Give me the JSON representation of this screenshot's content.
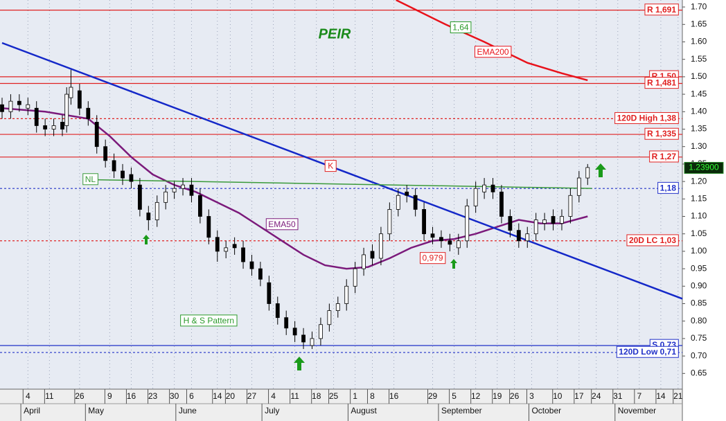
{
  "chart_data": {
    "type": "candlestick",
    "title": "PEIR",
    "xlim": [
      0,
      158
    ],
    "ylim": [
      0.605,
      1.72
    ],
    "yticks": [
      {
        "value": 0.65,
        "label": "0.65"
      },
      {
        "value": 0.7,
        "label": "0.70"
      },
      {
        "value": 0.75,
        "label": "0.75"
      },
      {
        "value": 0.8,
        "label": "0.80"
      },
      {
        "value": 0.85,
        "label": "0.85"
      },
      {
        "value": 0.9,
        "label": "0.90"
      },
      {
        "value": 0.95,
        "label": "0.95"
      },
      {
        "value": 1.0,
        "label": "1.00"
      },
      {
        "value": 1.05,
        "label": "1.05"
      },
      {
        "value": 1.1,
        "label": "1.10"
      },
      {
        "value": 1.15,
        "label": "1.15"
      },
      {
        "value": 1.2,
        "label": "1.20"
      },
      {
        "value": 1.25,
        "label": "1.25"
      },
      {
        "value": 1.3,
        "label": "1.30"
      },
      {
        "value": 1.35,
        "label": "1.35"
      },
      {
        "value": 1.4,
        "label": "1.40"
      },
      {
        "value": 1.45,
        "label": "1.45"
      },
      {
        "value": 1.5,
        "label": "1.50"
      },
      {
        "value": 1.55,
        "label": "1.55"
      },
      {
        "value": 1.6,
        "label": "1.60"
      },
      {
        "value": 1.65,
        "label": "1.65"
      },
      {
        "value": 1.7,
        "label": "1.70"
      }
    ],
    "xticks": [
      {
        "value": 6,
        "label": "4"
      },
      {
        "value": 11,
        "label": "11"
      },
      {
        "value": 18,
        "label": "26"
      },
      {
        "value": 25,
        "label": "9"
      },
      {
        "value": 30,
        "label": "16"
      },
      {
        "value": 35,
        "label": "23"
      },
      {
        "value": 40,
        "label": "30"
      },
      {
        "value": 44,
        "label": "6"
      },
      {
        "value": 50,
        "label": "14"
      },
      {
        "value": 53,
        "label": "20"
      },
      {
        "value": 58,
        "label": "27"
      },
      {
        "value": 63,
        "label": "4"
      },
      {
        "value": 68,
        "label": "11"
      },
      {
        "value": 73,
        "label": "18"
      },
      {
        "value": 77,
        "label": "25"
      },
      {
        "value": 82,
        "label": "1"
      },
      {
        "value": 86,
        "label": "8"
      },
      {
        "value": 91,
        "label": "16"
      },
      {
        "value": 100,
        "label": "29"
      },
      {
        "value": 105,
        "label": "5"
      },
      {
        "value": 110,
        "label": "12"
      },
      {
        "value": 115,
        "label": "19"
      },
      {
        "value": 119,
        "label": "26"
      },
      {
        "value": 123,
        "label": "3"
      },
      {
        "value": 129,
        "label": "10"
      },
      {
        "value": 134,
        "label": "17"
      },
      {
        "value": 138,
        "label": "24"
      },
      {
        "value": 143,
        "label": "31"
      },
      {
        "value": 148,
        "label": "7"
      },
      {
        "value": 153,
        "label": "14"
      },
      {
        "value": 157,
        "label": "21"
      }
    ],
    "months": [
      {
        "value": 5,
        "label": "April"
      },
      {
        "value": 20,
        "label": "May"
      },
      {
        "value": 41,
        "label": "June"
      },
      {
        "value": 61,
        "label": "July"
      },
      {
        "value": 81,
        "label": "August"
      },
      {
        "value": 102,
        "label": "September"
      },
      {
        "value": 123,
        "label": "October"
      },
      {
        "value": 143,
        "label": "November"
      }
    ],
    "up_color": "#ffffff",
    "down_color": "#000000",
    "x": [
      0,
      2,
      4,
      6,
      8,
      10,
      12,
      14,
      15,
      16,
      18,
      20,
      22,
      24,
      26,
      28,
      30,
      32,
      34,
      36,
      38,
      40,
      42,
      44,
      46,
      48,
      50,
      52,
      54,
      56,
      58,
      60,
      62,
      64,
      66,
      68,
      70,
      72,
      74,
      76,
      78,
      80,
      82,
      84,
      86,
      88,
      90,
      92,
      94,
      96,
      98,
      100,
      102,
      104,
      106,
      108,
      110,
      112,
      114,
      116,
      118,
      120,
      122,
      124,
      126,
      128,
      130,
      132,
      134,
      136
    ],
    "open": [
      1.42,
      1.4,
      1.43,
      1.41,
      1.41,
      1.36,
      1.35,
      1.37,
      1.36,
      1.44,
      1.46,
      1.41,
      1.37,
      1.3,
      1.26,
      1.23,
      1.22,
      1.19,
      1.11,
      1.09,
      1.14,
      1.17,
      1.18,
      1.19,
      1.16,
      1.1,
      1.04,
      1.0,
      1.02,
      1.01,
      0.97,
      0.95,
      0.91,
      0.85,
      0.81,
      0.78,
      0.76,
      0.73,
      0.75,
      0.79,
      0.83,
      0.85,
      0.9,
      0.95,
      1.0,
      0.98,
      1.05,
      1.12,
      1.17,
      1.16,
      1.12,
      1.05,
      1.04,
      1.03,
      1.01,
      1.03,
      1.13,
      1.17,
      1.19,
      1.17,
      1.1,
      1.06,
      1.03,
      1.05,
      1.08,
      1.1,
      1.08,
      1.1,
      1.16,
      1.21
    ],
    "high": [
      1.44,
      1.45,
      1.45,
      1.44,
      1.43,
      1.38,
      1.38,
      1.39,
      1.47,
      1.52,
      1.48,
      1.43,
      1.39,
      1.32,
      1.28,
      1.25,
      1.24,
      1.21,
      1.13,
      1.16,
      1.19,
      1.2,
      1.21,
      1.21,
      1.18,
      1.12,
      1.06,
      1.03,
      1.04,
      1.03,
      0.99,
      0.97,
      0.93,
      0.87,
      0.83,
      0.8,
      0.78,
      0.77,
      0.81,
      0.85,
      0.87,
      0.92,
      0.97,
      1.01,
      1.02,
      1.07,
      1.14,
      1.18,
      1.19,
      1.18,
      1.14,
      1.07,
      1.06,
      1.05,
      1.05,
      1.15,
      1.2,
      1.21,
      1.21,
      1.19,
      1.12,
      1.08,
      1.07,
      1.11,
      1.11,
      1.12,
      1.12,
      1.18,
      1.23,
      1.25
    ],
    "low": [
      1.38,
      1.38,
      1.4,
      1.39,
      1.34,
      1.33,
      1.33,
      1.33,
      1.34,
      1.42,
      1.39,
      1.36,
      1.28,
      1.24,
      1.21,
      1.19,
      1.18,
      1.1,
      1.06,
      1.07,
      1.12,
      1.15,
      1.16,
      1.14,
      1.08,
      1.02,
      0.97,
      0.98,
      0.99,
      0.95,
      0.93,
      0.9,
      0.83,
      0.79,
      0.76,
      0.74,
      0.72,
      0.72,
      0.73,
      0.77,
      0.81,
      0.83,
      0.88,
      0.93,
      0.96,
      0.96,
      1.03,
      1.1,
      1.14,
      1.1,
      1.03,
      1.02,
      1.01,
      1.0,
      0.99,
      1.01,
      1.11,
      1.15,
      1.15,
      1.08,
      1.04,
      1.01,
      1.01,
      1.03,
      1.06,
      1.06,
      1.06,
      1.08,
      1.14,
      1.19
    ],
    "close": [
      1.4,
      1.43,
      1.42,
      1.42,
      1.36,
      1.35,
      1.36,
      1.35,
      1.45,
      1.47,
      1.41,
      1.38,
      1.3,
      1.26,
      1.23,
      1.21,
      1.2,
      1.12,
      1.09,
      1.14,
      1.17,
      1.18,
      1.19,
      1.16,
      1.1,
      1.04,
      1.0,
      1.01,
      1.01,
      0.97,
      0.95,
      0.92,
      0.85,
      0.81,
      0.78,
      0.76,
      0.74,
      0.75,
      0.79,
      0.83,
      0.85,
      0.9,
      0.95,
      0.99,
      0.98,
      1.05,
      1.12,
      1.16,
      1.16,
      1.12,
      1.05,
      1.04,
      1.03,
      1.02,
      1.03,
      1.13,
      1.18,
      1.19,
      1.17,
      1.1,
      1.06,
      1.03,
      1.05,
      1.09,
      1.09,
      1.08,
      1.1,
      1.16,
      1.21,
      1.24
    ],
    "overlays": [
      {
        "name": "EMA50",
        "color": "#7b1a7b",
        "width": 2.5,
        "x": [
          0,
          10,
          20,
          25,
          30,
          35,
          40,
          45,
          50,
          55,
          60,
          65,
          70,
          75,
          80,
          85,
          90,
          95,
          100,
          105,
          110,
          115,
          120,
          125,
          130,
          136
        ],
        "values": [
          1.41,
          1.4,
          1.38,
          1.33,
          1.27,
          1.22,
          1.19,
          1.17,
          1.14,
          1.11,
          1.07,
          1.03,
          0.99,
          0.96,
          0.95,
          0.955,
          0.98,
          1.01,
          1.03,
          1.035,
          1.05,
          1.07,
          1.09,
          1.08,
          1.08,
          1.1
        ],
        "label_x": 65,
        "label_y": 1.076
      },
      {
        "name": "EMA200",
        "color": "#e8121b",
        "width": 2.5,
        "x": [
          91.5,
          103,
          112,
          122,
          130,
          136
        ],
        "values": [
          1.72,
          1.65,
          1.6,
          1.54,
          1.51,
          1.49
        ],
        "label_x": 114,
        "label_y": 1.57
      },
      {
        "color": "#1428c8",
        "width": 2.5,
        "x": [
          0,
          158
        ],
        "values": [
          1.597,
          0.864
        ]
      },
      {
        "name": "NL",
        "color": "#3a9a3a",
        "width": 1.5,
        "x": [
          22,
          137
        ],
        "values": [
          1.205,
          1.18
        ],
        "label_x": 20.5,
        "label_y": 1.205
      }
    ],
    "levels": [
      {
        "value": 1.691,
        "label": "R 1,691",
        "color": "#e02020",
        "dashed": false
      },
      {
        "value": 1.5,
        "label": "R 1,50",
        "color": "#e02020",
        "dashed": false
      },
      {
        "value": 1.481,
        "label": "R 1,481",
        "color": "#e02020",
        "dashed": false
      },
      {
        "value": 1.38,
        "label": "120D High 1,38",
        "color": "#e02020",
        "dashed": true
      },
      {
        "value": 1.335,
        "label": "R 1,335",
        "color": "#e02020",
        "dashed": false
      },
      {
        "value": 1.27,
        "label": "R 1,27",
        "color": "#e02020",
        "dashed": false
      },
      {
        "value": 1.18,
        "label": "1,18",
        "color": "#2030c8",
        "dashed": true
      },
      {
        "value": 1.03,
        "label": "20D LC 1,03",
        "color": "#e02020",
        "dashed": true
      },
      {
        "value": 0.73,
        "label": "S 0,73",
        "color": "#2030c8",
        "dashed": false
      },
      {
        "value": 0.71,
        "label": "120D Low 0,71",
        "color": "#2030c8",
        "dashed": true
      }
    ],
    "annotations": [
      {
        "text": "H & S Pattern",
        "x": 48,
        "y": 0.8,
        "color": "#2a9a2a"
      },
      {
        "text": "K",
        "x": 76.3,
        "y": 1.243,
        "color": "#e02020"
      }
    ],
    "price_marks": [
      {
        "value": 1.64,
        "label": "1,64",
        "x": 106.5,
        "color": "#2a9a2a"
      },
      {
        "value": 0.979,
        "label": "0,979",
        "x": 100,
        "color": "#e02020"
      }
    ],
    "last_price": {
      "value": 1.239,
      "label": "1.23900"
    }
  }
}
